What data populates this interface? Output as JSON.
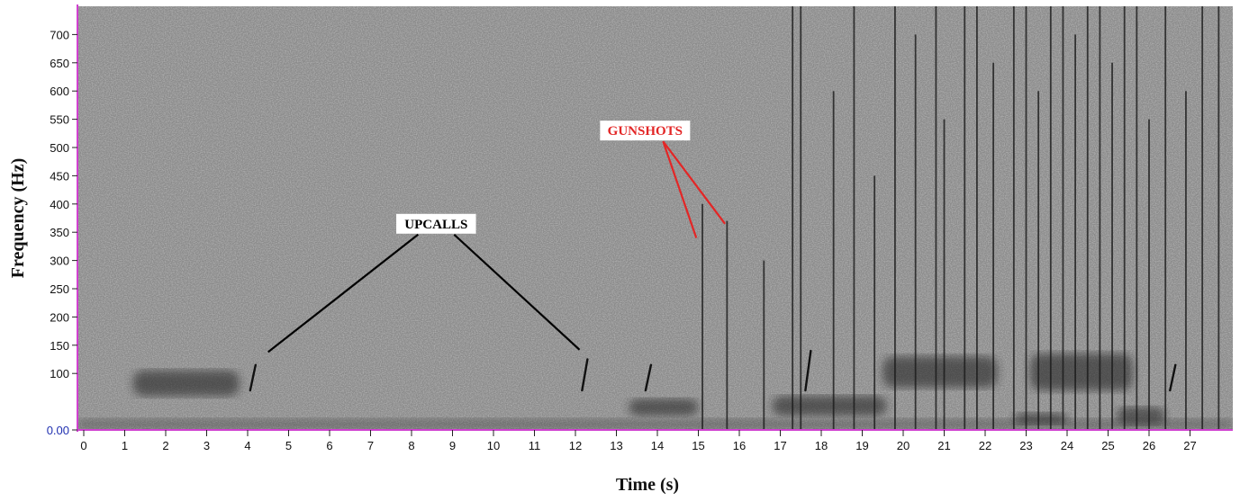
{
  "chart_data": {
    "type": "heatmap",
    "title": "",
    "xlabel": "Time (s)",
    "ylabel": "Frequency (Hz)",
    "xlim": [
      0,
      28
    ],
    "ylim": [
      0,
      750
    ],
    "x_ticks": [
      0,
      1,
      2,
      3,
      4,
      5,
      6,
      7,
      8,
      9,
      10,
      11,
      12,
      13,
      14,
      15,
      16,
      17,
      18,
      19,
      20,
      21,
      22,
      23,
      24,
      25,
      26,
      27
    ],
    "y_ticks": [
      {
        "value": 0,
        "label": "0.00"
      },
      {
        "value": 100,
        "label": "100"
      },
      {
        "value": 150,
        "label": "150"
      },
      {
        "value": 200,
        "label": "200"
      },
      {
        "value": 250,
        "label": "250"
      },
      {
        "value": 300,
        "label": "300"
      },
      {
        "value": 350,
        "label": "350"
      },
      {
        "value": 400,
        "label": "400"
      },
      {
        "value": 450,
        "label": "450"
      },
      {
        "value": 500,
        "label": "500"
      },
      {
        "value": 550,
        "label": "550"
      },
      {
        "value": 600,
        "label": "600"
      },
      {
        "value": 650,
        "label": "650"
      },
      {
        "value": 700,
        "label": "700"
      }
    ],
    "colormap": "grayscale",
    "upcalls": [
      {
        "t": 4.15,
        "f_start": 70,
        "f_end": 115
      },
      {
        "t": 12.25,
        "f_start": 70,
        "f_end": 125
      },
      {
        "t": 13.8,
        "f_start": 70,
        "f_end": 115
      },
      {
        "t": 17.7,
        "f_start": 70,
        "f_end": 140
      },
      {
        "t": 26.6,
        "f_start": 70,
        "f_end": 115
      }
    ],
    "low_freq_patches": [
      {
        "t0": 1.2,
        "t1": 3.8,
        "f0": 60,
        "f1": 105
      },
      {
        "t0": 13.3,
        "t1": 15.0,
        "f0": 25,
        "f1": 55
      },
      {
        "t0": 16.8,
        "t1": 19.6,
        "f0": 25,
        "f1": 60
      },
      {
        "t0": 19.5,
        "t1": 22.3,
        "f0": 75,
        "f1": 130
      },
      {
        "t0": 22.7,
        "t1": 24.0,
        "f0": 10,
        "f1": 30
      },
      {
        "t0": 23.1,
        "t1": 25.6,
        "f0": 70,
        "f1": 135
      },
      {
        "t0": 25.2,
        "t1": 26.4,
        "f0": 10,
        "f1": 40
      }
    ],
    "broadband_transients": [
      {
        "t": 15.1,
        "f_max": 400
      },
      {
        "t": 15.7,
        "f_max": 370
      },
      {
        "t": 16.6,
        "f_max": 300
      },
      {
        "t": 17.3,
        "f_max": 750
      },
      {
        "t": 17.5,
        "f_max": 750
      },
      {
        "t": 18.3,
        "f_max": 600
      },
      {
        "t": 18.8,
        "f_max": 750
      },
      {
        "t": 19.3,
        "f_max": 450
      },
      {
        "t": 19.8,
        "f_max": 750
      },
      {
        "t": 20.3,
        "f_max": 700
      },
      {
        "t": 20.8,
        "f_max": 750
      },
      {
        "t": 21.0,
        "f_max": 550
      },
      {
        "t": 21.5,
        "f_max": 750
      },
      {
        "t": 21.8,
        "f_max": 750
      },
      {
        "t": 22.2,
        "f_max": 650
      },
      {
        "t": 22.7,
        "f_max": 750
      },
      {
        "t": 23.0,
        "f_max": 750
      },
      {
        "t": 23.3,
        "f_max": 600
      },
      {
        "t": 23.6,
        "f_max": 750
      },
      {
        "t": 23.9,
        "f_max": 750
      },
      {
        "t": 24.2,
        "f_max": 700
      },
      {
        "t": 24.5,
        "f_max": 750
      },
      {
        "t": 24.8,
        "f_max": 750
      },
      {
        "t": 25.1,
        "f_max": 650
      },
      {
        "t": 25.4,
        "f_max": 750
      },
      {
        "t": 25.7,
        "f_max": 750
      },
      {
        "t": 26.0,
        "f_max": 550
      },
      {
        "t": 26.4,
        "f_max": 750
      },
      {
        "t": 26.9,
        "f_max": 600
      },
      {
        "t": 27.3,
        "f_max": 750
      },
      {
        "t": 27.7,
        "f_max": 750
      }
    ],
    "annotations": [
      {
        "text": "UPCALLS",
        "color": "#000000",
        "label_t": 8.6,
        "label_f": 365,
        "targets": [
          {
            "t": 4.5,
            "f": 138
          },
          {
            "t": 12.1,
            "f": 142
          }
        ]
      },
      {
        "text": "GUNSHOTS",
        "color": "#e32626",
        "label_t": 13.7,
        "label_f": 530,
        "targets": [
          {
            "t": 14.95,
            "f": 340
          },
          {
            "t": 15.65,
            "f": 365
          }
        ]
      }
    ]
  },
  "colors": {
    "axis_line": "#d040d0",
    "line_black": "#000000",
    "line_red": "#e32626",
    "zero_label": "#1f2fb0"
  }
}
